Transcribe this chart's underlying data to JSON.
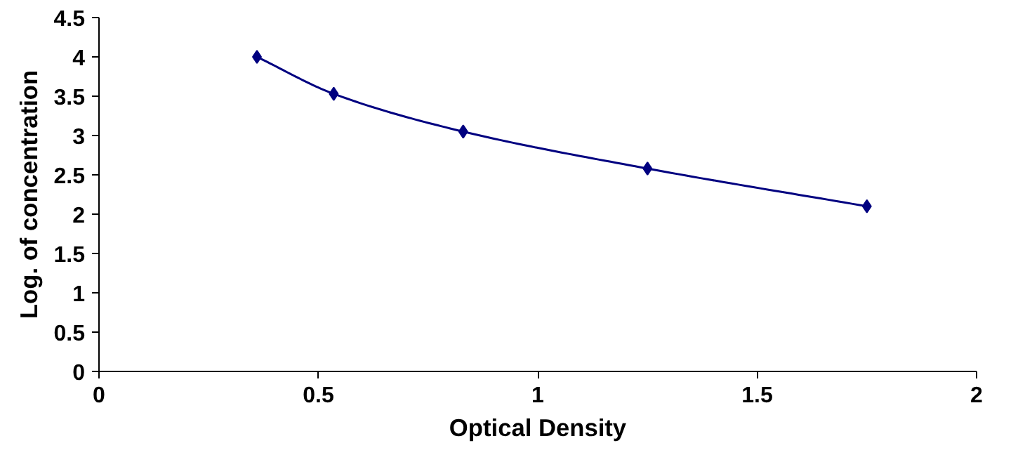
{
  "chart_data": {
    "type": "line",
    "xlabel": "Optical Density",
    "ylabel": "Log. of concentration",
    "x": [
      0.36,
      0.535,
      0.83,
      1.25,
      1.75
    ],
    "series": [
      {
        "color": "#000080",
        "values": [
          4.0,
          3.53,
          3.05,
          2.58,
          2.1
        ]
      }
    ],
    "xlim": [
      0,
      2
    ],
    "xticks": [
      0,
      0.5,
      1,
      1.5,
      2
    ],
    "ylim": [
      0,
      4.5
    ],
    "yticks": [
      0,
      0.5,
      1,
      1.5,
      2,
      2.5,
      3,
      3.5,
      4,
      4.5
    ],
    "grid": false,
    "marker": "diamond",
    "line_style": "solid"
  }
}
